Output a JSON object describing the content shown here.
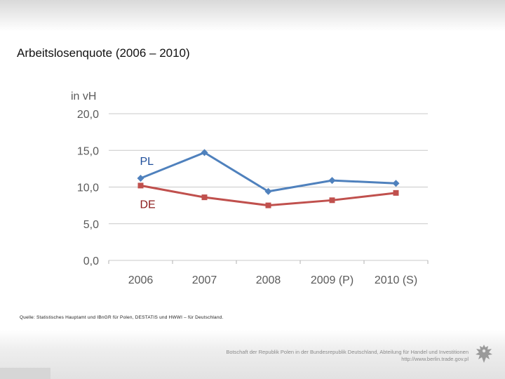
{
  "slide": {
    "title": "Arbeitslosenquote (2006 – 2010)",
    "source": "Quelle: Statistisches Hauptamt und IBnGR für Polen, DESTATIS und HWWI – für Deutschland.",
    "footer_line1": "Botschaft der Republik Polen in der Bundesrepublik Deutschland, Abteilung für Handel und Investitionen",
    "footer_line2": "http://www.berlin.trade.gov.pl"
  },
  "chart_data": {
    "type": "line",
    "title": "Arbeitslosenquote (2006 – 2010)",
    "ylabel": "in vH",
    "xlabel": "",
    "categories": [
      "2006",
      "2007",
      "2008",
      "2009 (P)",
      "2010 (S)"
    ],
    "y_ticks": [
      20.0,
      15.0,
      10.0,
      5.0,
      0.0
    ],
    "y_tick_labels": [
      "20,0",
      "15,0",
      "10,0",
      "5,0",
      "0,0"
    ],
    "ylim": [
      0,
      20
    ],
    "grid": true,
    "series": [
      {
        "name": "PL",
        "values": [
          11.2,
          14.7,
          9.4,
          10.9,
          10.5
        ],
        "color": "#4f81bd",
        "marker": "diamond"
      },
      {
        "name": "DE",
        "values": [
          10.2,
          8.6,
          7.5,
          8.2,
          9.2
        ],
        "color": "#c0504d",
        "marker": "square"
      }
    ]
  }
}
